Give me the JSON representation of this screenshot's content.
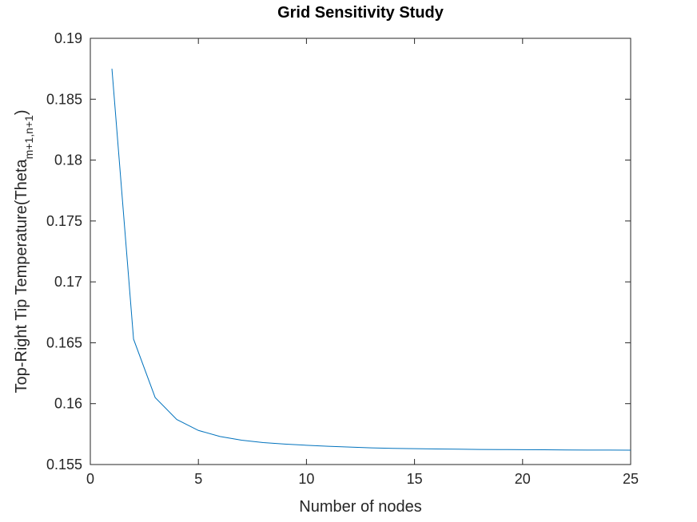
{
  "chart_data": {
    "type": "line",
    "title": "Grid Sensitivity Study",
    "xlabel": "Number of nodes",
    "ylabel_main": "Top-Right Tip Temperature(Theta",
    "ylabel_sub": "m+1,n+1",
    "ylabel_close": ")",
    "xlim": [
      0,
      25
    ],
    "ylim": [
      0.155,
      0.19
    ],
    "xticks": [
      0,
      5,
      10,
      15,
      20,
      25
    ],
    "xtick_labels": [
      "0",
      "5",
      "10",
      "15",
      "20",
      "25"
    ],
    "yticks": [
      0.155,
      0.16,
      0.165,
      0.17,
      0.175,
      0.18,
      0.185,
      0.19
    ],
    "ytick_labels": [
      "0.155",
      "0.16",
      "0.165",
      "0.17",
      "0.175",
      "0.18",
      "0.185",
      "0.19"
    ],
    "grid": false,
    "series": [
      {
        "color": "#0072bd",
        "x": [
          1,
          2,
          3,
          4,
          5,
          6,
          7,
          8,
          9,
          10,
          11,
          12,
          13,
          14,
          15,
          16,
          17,
          18,
          19,
          20,
          21,
          22,
          23,
          24,
          25
        ],
        "y": [
          0.1875,
          0.1653,
          0.1605,
          0.1587,
          0.1578,
          0.1573,
          0.157,
          0.1568,
          0.15668,
          0.15658,
          0.1565,
          0.15643,
          0.15637,
          0.15633,
          0.1563,
          0.15628,
          0.15626,
          0.15624,
          0.15623,
          0.15622,
          0.15621,
          0.1562,
          0.15619,
          0.15619,
          0.15618
        ]
      }
    ]
  }
}
